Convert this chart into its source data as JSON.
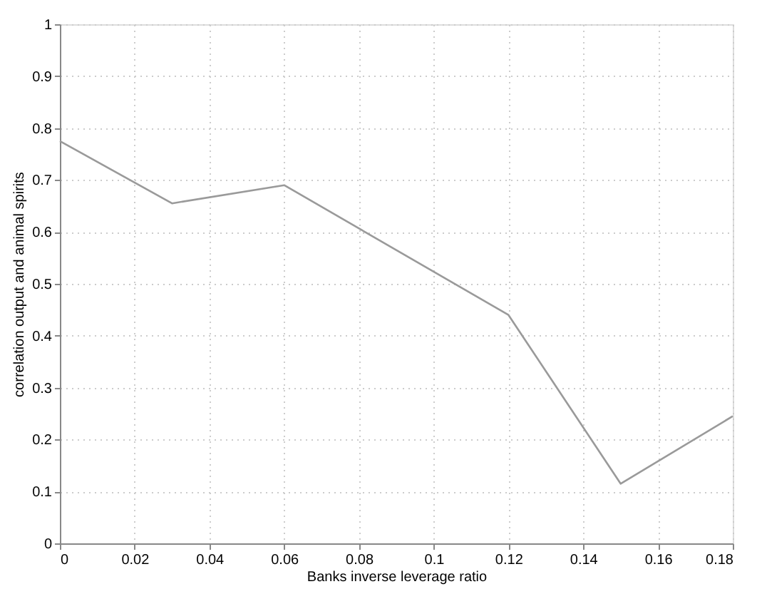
{
  "chart_data": {
    "type": "line",
    "xlabel": "Banks inverse leverage ratio",
    "ylabel": "correlation output and animal spirits",
    "x": [
      0,
      0.03,
      0.06,
      0.12,
      0.15,
      0.18
    ],
    "series": [
      {
        "color": "#9a9a9a",
        "values": [
          0.775,
          0.655,
          0.69,
          0.44,
          0.115,
          0.245
        ]
      }
    ],
    "xlim": [
      0,
      0.18
    ],
    "xticks": [
      0,
      0.02,
      0.04,
      0.06,
      0.08,
      0.1,
      0.12,
      0.14,
      0.16,
      0.18
    ],
    "ylim": [
      0,
      1
    ],
    "yticks": [
      0,
      0.1,
      0.2,
      0.3,
      0.4,
      0.5,
      0.6,
      0.7,
      0.8,
      0.9,
      1
    ],
    "grid": true,
    "line_style": "solid",
    "marker": "none"
  }
}
